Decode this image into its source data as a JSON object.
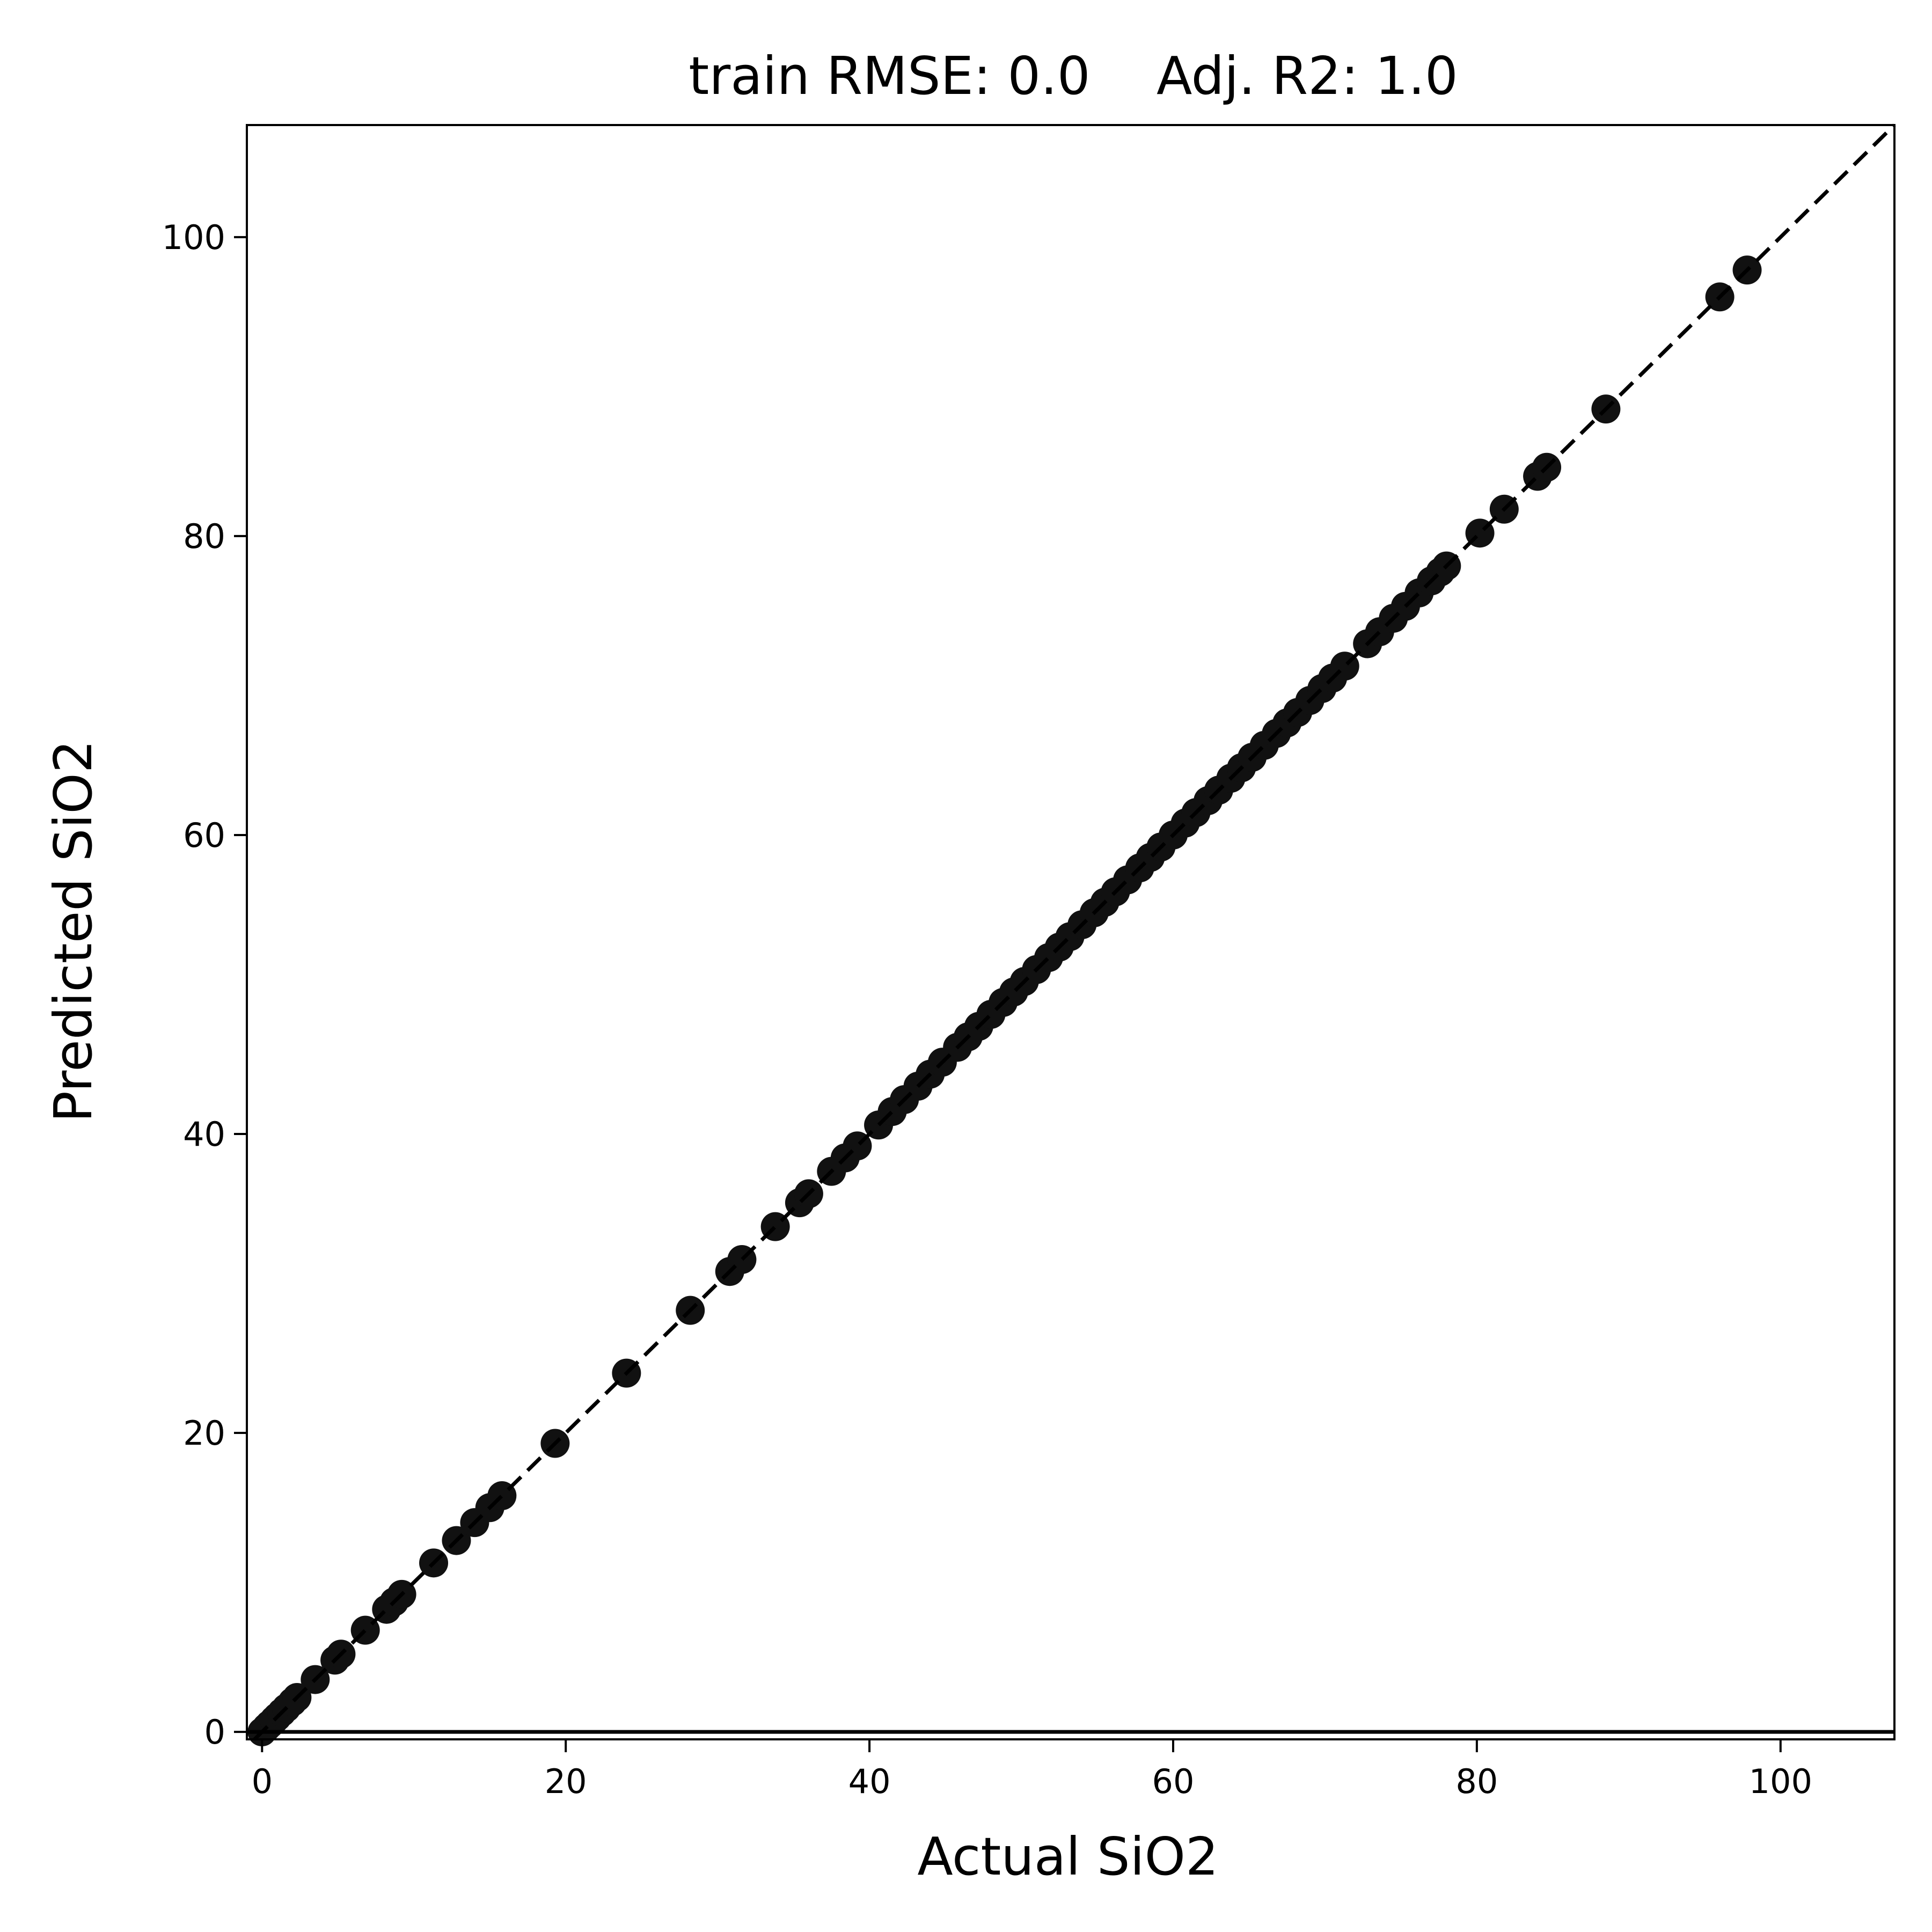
{
  "chart_data": {
    "type": "scatter",
    "title": "train RMSE: 0.0    Adj. R2: 1.0",
    "xlabel": "Actual SiO2",
    "ylabel": "Predicted SiO2",
    "xlim": [
      -1,
      107.5
    ],
    "ylim": [
      -0.5,
      107.5
    ],
    "xticks": [
      0,
      20,
      40,
      60,
      80,
      100
    ],
    "yticks": [
      0,
      20,
      40,
      60,
      80,
      100
    ],
    "xtick_labels": [
      "0",
      "20",
      "40",
      "60",
      "80",
      "100"
    ],
    "ytick_labels": [
      "0",
      "20",
      "40",
      "60",
      "80",
      "100"
    ],
    "grid": false,
    "reference_line": {
      "style": "dashed",
      "slope": 1,
      "intercept": 0,
      "color": "#000000"
    },
    "horizontal_line": {
      "y": 0,
      "color": "#000000"
    },
    "marker_color": "#111111",
    "series": [
      {
        "x": [
          0,
          0.3,
          0.5,
          0.8,
          1.0,
          1.3,
          1.6,
          2.0,
          2.3,
          3.5,
          4.8,
          5.2,
          6.8,
          8.2,
          8.7,
          9.2,
          11.3,
          12.8,
          14.0,
          15.0,
          15.8,
          19.3,
          24.0,
          28.2,
          30.8,
          31.6,
          33.8,
          35.4,
          36.0,
          37.5,
          38.4,
          39.2,
          40.6,
          41.5,
          42.3,
          43.2,
          44.0,
          44.8,
          45.8,
          46.5,
          47.2,
          48.0,
          48.8,
          49.5,
          50.2,
          51.0,
          51.8,
          52.5,
          53.2,
          54.0,
          54.8,
          55.5,
          56.2,
          57.0,
          57.8,
          58.5,
          59.2,
          60.0,
          60.8,
          61.5,
          62.3,
          63.0,
          63.8,
          64.5,
          65.2,
          66.0,
          66.8,
          67.5,
          68.2,
          69.0,
          69.8,
          70.5,
          71.3,
          72.8,
          73.6,
          74.5,
          75.3,
          76.2,
          77.0,
          77.6,
          78.0,
          80.2,
          81.8,
          84.0,
          84.6,
          88.5,
          96.0,
          97.8
        ],
        "y": [
          0,
          0.3,
          0.5,
          0.8,
          1.0,
          1.3,
          1.6,
          2.0,
          2.3,
          3.5,
          4.8,
          5.2,
          6.8,
          8.2,
          8.7,
          9.2,
          11.3,
          12.8,
          14.0,
          15.0,
          15.8,
          19.3,
          24.0,
          28.2,
          30.8,
          31.6,
          33.8,
          35.4,
          36.0,
          37.5,
          38.4,
          39.2,
          40.6,
          41.5,
          42.3,
          43.2,
          44.0,
          44.8,
          45.8,
          46.5,
          47.2,
          48.0,
          48.8,
          49.5,
          50.2,
          51.0,
          51.8,
          52.5,
          53.2,
          54.0,
          54.8,
          55.5,
          56.2,
          57.0,
          57.8,
          58.5,
          59.2,
          60.0,
          60.8,
          61.5,
          62.3,
          63.0,
          63.8,
          64.5,
          65.2,
          66.0,
          66.8,
          67.5,
          68.2,
          69.0,
          69.8,
          70.5,
          71.3,
          72.8,
          73.6,
          74.5,
          75.3,
          76.2,
          77.0,
          77.6,
          78.0,
          80.2,
          81.8,
          84.0,
          84.6,
          88.5,
          96.0,
          97.8
        ]
      }
    ]
  }
}
